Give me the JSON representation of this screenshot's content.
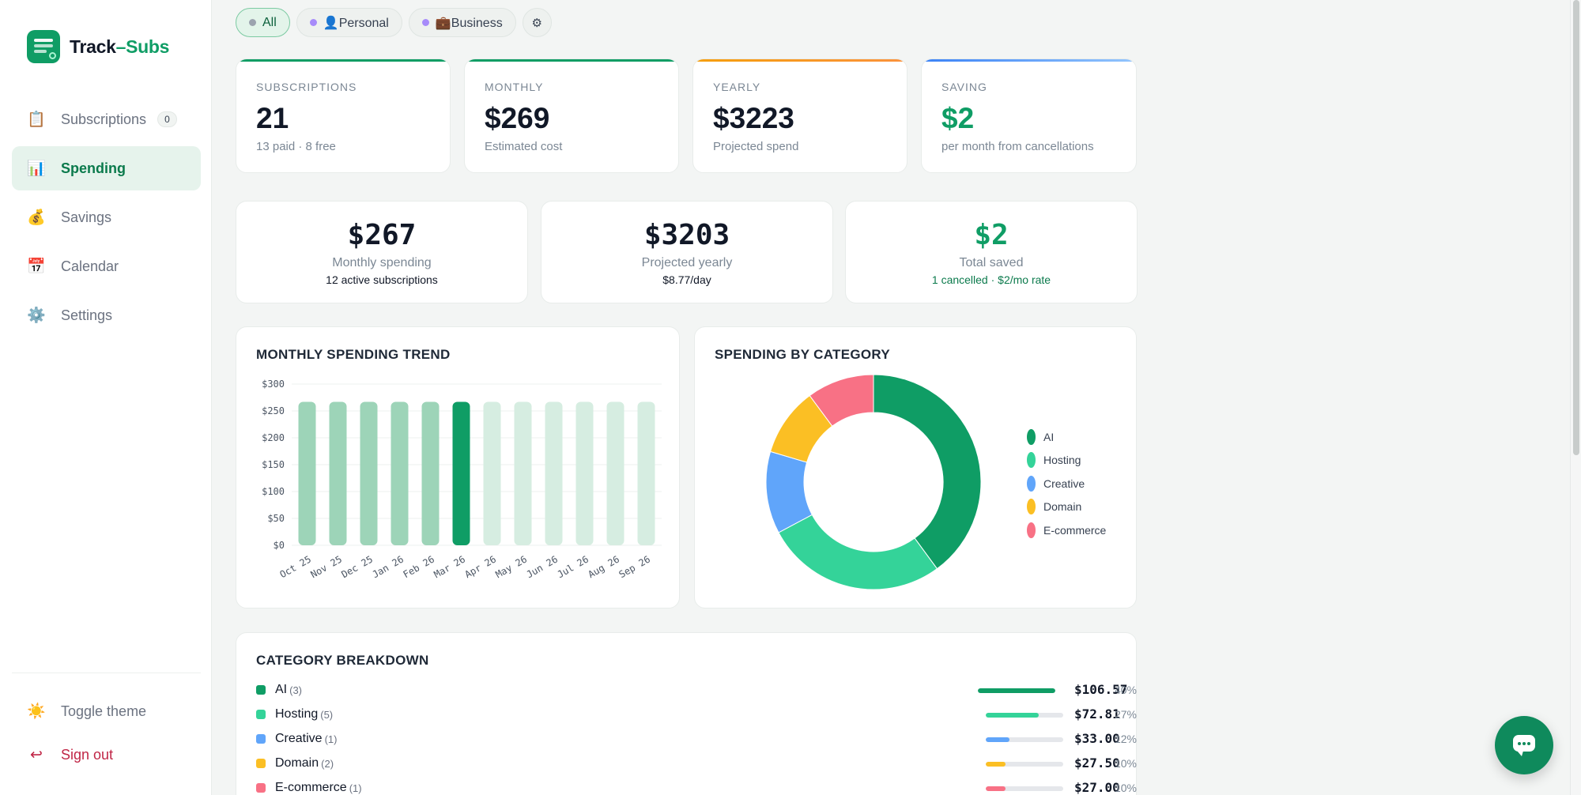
{
  "app": {
    "name_part1": "Track",
    "name_part2": "–Subs"
  },
  "sidebar": {
    "items": [
      {
        "label": "Subscriptions",
        "icon": "clipboard-icon",
        "glyph": "📋",
        "badge": "0"
      },
      {
        "label": "Spending",
        "icon": "bar-chart-icon",
        "glyph": "📊",
        "active": true
      },
      {
        "label": "Savings",
        "icon": "money-bag-icon",
        "glyph": "💰"
      },
      {
        "label": "Calendar",
        "icon": "calendar-icon",
        "glyph": "📅"
      },
      {
        "label": "Settings",
        "icon": "gear-icon",
        "glyph": "⚙️"
      }
    ],
    "toggle_theme": {
      "label": "Toggle theme",
      "glyph": "☀️"
    },
    "sign_out": {
      "label": "Sign out",
      "glyph": "↩"
    }
  },
  "filters": {
    "all": "All",
    "personal": "👤Personal",
    "business": "💼Business",
    "settings_glyph": "⚙"
  },
  "stats": [
    {
      "label": "SUBSCRIPTIONS",
      "value": "21",
      "sub": "13 paid · 8 free",
      "accent": "#0f9d65"
    },
    {
      "label": "MONTHLY",
      "value": "$269",
      "sub": "Estimated cost",
      "accent": "#0f9d65"
    },
    {
      "label": "YEARLY",
      "value": "$3223",
      "sub": "Projected spend",
      "accent": "#f59e0b"
    },
    {
      "label": "SAVING",
      "value": "$2",
      "sub": "per month from cancellations",
      "accent": "#3b82f6"
    }
  ],
  "summary": [
    {
      "value": "$267",
      "label": "Monthly spending",
      "sub": "12 active subscriptions"
    },
    {
      "value": "$3203",
      "label": "Projected yearly",
      "sub": "$8.77/day"
    },
    {
      "value": "$2",
      "label": "Total saved",
      "sub": "1 cancelled · $2/mo rate"
    }
  ],
  "trend": {
    "title": "MONTHLY SPENDING TREND"
  },
  "category_chart": {
    "title": "SPENDING BY CATEGORY"
  },
  "breakdown": {
    "title": "CATEGORY BREAKDOWN",
    "rows": [
      {
        "name": "AI",
        "count": "(3)",
        "amount": "$106.57",
        "pct": "40%",
        "fraction": 1.0,
        "color": "#0f9d65"
      },
      {
        "name": "Hosting",
        "count": "(5)",
        "amount": "$72.81",
        "pct": "27%",
        "fraction": 0.68,
        "color": "#34d399"
      },
      {
        "name": "Creative",
        "count": "(1)",
        "amount": "$33.00",
        "pct": "12%",
        "fraction": 0.31,
        "color": "#60a5fa"
      },
      {
        "name": "Domain",
        "count": "(2)",
        "amount": "$27.50",
        "pct": "10%",
        "fraction": 0.26,
        "color": "#fbbf24"
      },
      {
        "name": "E-commerce",
        "count": "(1)",
        "amount": "$27.00",
        "pct": "10%",
        "fraction": 0.25,
        "color": "#f87185"
      }
    ]
  },
  "chart_data": [
    {
      "type": "bar",
      "title": "MONTHLY SPENDING TREND",
      "categories": [
        "Oct 25",
        "Nov 25",
        "Dec 25",
        "Jan 26",
        "Feb 26",
        "Mar 26",
        "Apr 26",
        "May 26",
        "Jun 26",
        "Jul 26",
        "Aug 26",
        "Sep 26"
      ],
      "values": [
        267,
        267,
        267,
        267,
        267,
        267,
        267,
        267,
        267,
        267,
        267,
        267
      ],
      "highlight_index": 5,
      "ylim": [
        0,
        300
      ],
      "yticks": [
        "$0",
        "$50",
        "$100",
        "$150",
        "$200",
        "$250",
        "$300"
      ],
      "colors": {
        "past": "#9dd4b8",
        "current": "#0f9d65",
        "future": "#d6ede1"
      },
      "grid": true
    },
    {
      "type": "pie",
      "title": "SPENDING BY CATEGORY",
      "labels": [
        "AI",
        "Hosting",
        "Creative",
        "Domain",
        "E-commerce"
      ],
      "values": [
        106.57,
        72.81,
        33.0,
        27.5,
        27.0
      ],
      "colors": [
        "#0f9d65",
        "#34d399",
        "#60a5fa",
        "#fbbf24",
        "#f87185"
      ],
      "legend": "right"
    }
  ]
}
